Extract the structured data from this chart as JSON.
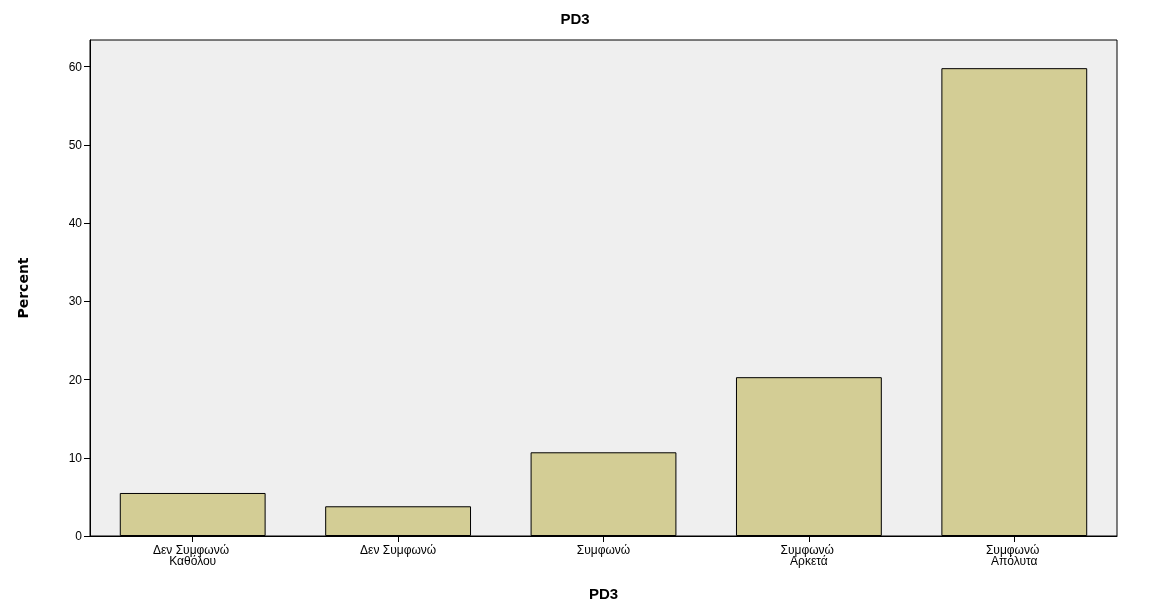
{
  "chart_data": {
    "type": "bar",
    "title": "PD3",
    "xlabel": "PD3",
    "ylabel": "Percent",
    "categories": [
      "Δεν Συμφωνώ Καθόλου",
      "Δεν Συμφωνώ",
      "Συμφωνώ",
      "Συμφωνώ Αρκετά",
      "Συμφωνώ Απόλυτα"
    ],
    "values": [
      5.5,
      3.8,
      10.7,
      20.3,
      59.8
    ],
    "color": "#d3cd95",
    "ylim": [
      0,
      63.4
    ],
    "yticks": [
      0,
      10,
      20,
      30,
      40,
      50,
      60
    ],
    "grid": false
  }
}
